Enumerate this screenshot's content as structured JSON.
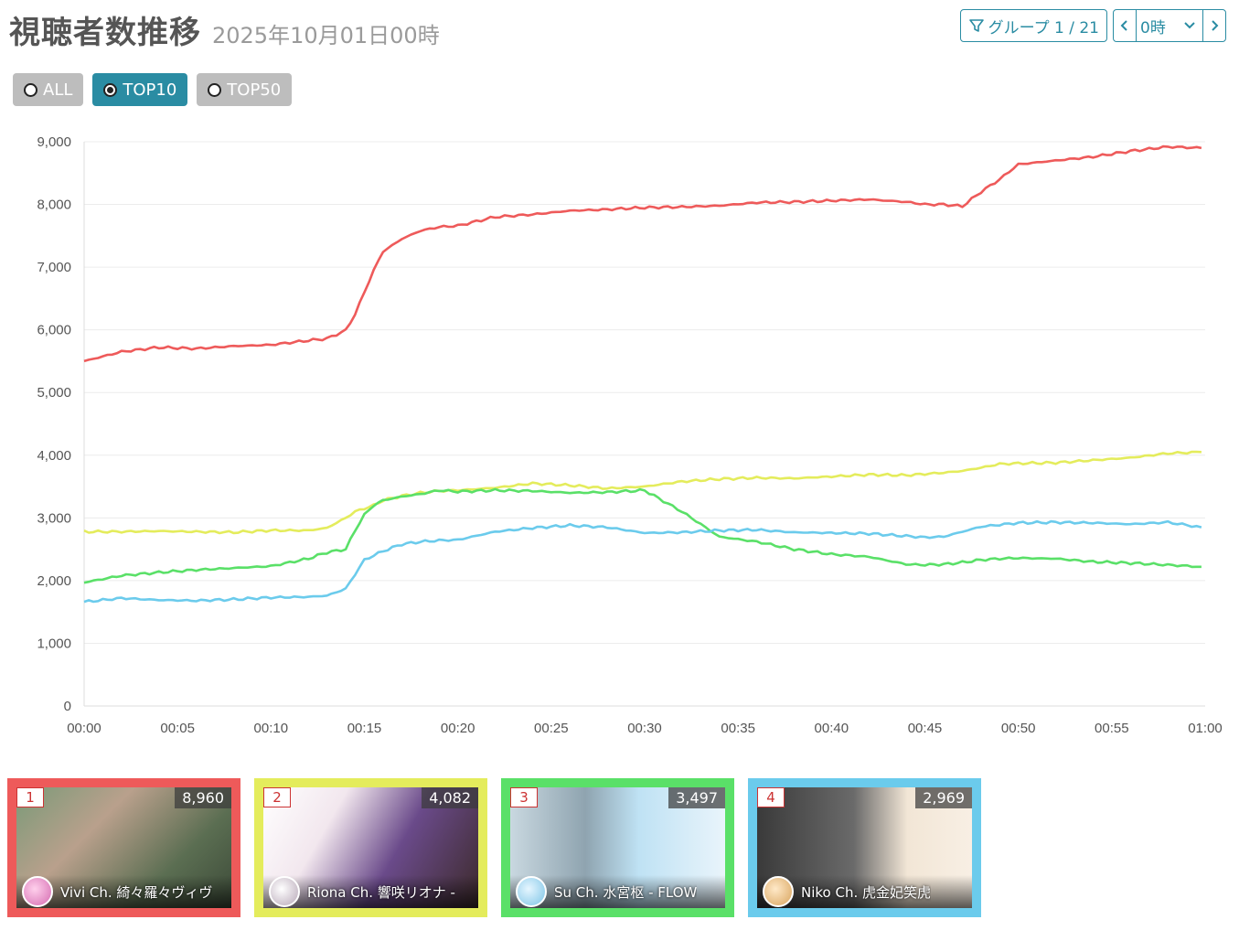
{
  "header": {
    "title": "視聴者数推移",
    "subtitle": "2025年10月01日00時"
  },
  "controls": {
    "group_label": "グループ 1 / 21",
    "hour_value": "0時",
    "prev_icon": "chevron-left-icon",
    "next_icon": "chevron-right-icon",
    "filter_icon": "filter-icon"
  },
  "filters": [
    {
      "label": "ALL",
      "selected": false
    },
    {
      "label": "TOP10",
      "selected": true
    },
    {
      "label": "TOP50",
      "selected": false
    }
  ],
  "cards": [
    {
      "rank": "1",
      "count": "8,960",
      "name": "Vivi Ch. 綺々羅々ヴィヴ",
      "color": "#ee5a5a"
    },
    {
      "rank": "2",
      "count": "4,082",
      "name": "Riona Ch. 響咲リオナ -",
      "color": "#e4ec5c"
    },
    {
      "rank": "3",
      "count": "3,497",
      "name": "Su Ch. 水宮枢 - FLOW",
      "color": "#5ae068"
    },
    {
      "rank": "4",
      "count": "2,969",
      "name": "Niko Ch. 虎金妃笑虎",
      "color": "#6bcbec"
    }
  ],
  "chart_data": {
    "type": "line",
    "title": "",
    "xlabel": "",
    "ylabel": "",
    "ylim": [
      0,
      9000
    ],
    "xlim_minutes": [
      0,
      60
    ],
    "y_ticks": [
      "0",
      "1,000",
      "2,000",
      "3,000",
      "4,000",
      "5,000",
      "6,000",
      "7,000",
      "8,000",
      "9,000"
    ],
    "x_ticks": [
      "00:00",
      "00:05",
      "00:10",
      "00:15",
      "00:20",
      "00:25",
      "00:30",
      "00:35",
      "00:40",
      "00:45",
      "00:50",
      "00:55",
      "01:00"
    ],
    "grid": true,
    "x_minutes": [
      0,
      2,
      4,
      6,
      8,
      10,
      12,
      13,
      14,
      14.5,
      15,
      15.5,
      16,
      17,
      18,
      19,
      20,
      22,
      24,
      26,
      28,
      30,
      32,
      34,
      36,
      38,
      40,
      42,
      44,
      45,
      46,
      47,
      48,
      49,
      50,
      52,
      54,
      56,
      58,
      59.8
    ],
    "series": [
      {
        "color": "#ee5a5a",
        "values": [
          5500,
          5650,
          5720,
          5700,
          5740,
          5760,
          5830,
          5860,
          5990,
          6250,
          6600,
          6950,
          7250,
          7450,
          7580,
          7640,
          7660,
          7800,
          7840,
          7900,
          7920,
          7950,
          7960,
          7980,
          8030,
          8040,
          8060,
          8080,
          8040,
          8000,
          8000,
          7970,
          8200,
          8400,
          8640,
          8700,
          8760,
          8850,
          8920,
          8900
        ]
      },
      {
        "color": "#e4ec5c",
        "values": [
          2780,
          2780,
          2790,
          2780,
          2770,
          2800,
          2800,
          2840,
          3000,
          3100,
          3150,
          3200,
          3280,
          3350,
          3400,
          3430,
          3440,
          3480,
          3550,
          3520,
          3470,
          3500,
          3580,
          3620,
          3640,
          3630,
          3660,
          3690,
          3680,
          3700,
          3720,
          3750,
          3800,
          3860,
          3870,
          3880,
          3920,
          3960,
          4030,
          4050
        ]
      },
      {
        "color": "#5ae068",
        "values": [
          1970,
          2080,
          2130,
          2170,
          2200,
          2230,
          2350,
          2450,
          2500,
          2800,
          3050,
          3200,
          3280,
          3340,
          3380,
          3440,
          3420,
          3440,
          3430,
          3400,
          3410,
          3440,
          3100,
          2700,
          2620,
          2500,
          2420,
          2380,
          2260,
          2250,
          2260,
          2290,
          2330,
          2350,
          2360,
          2350,
          2300,
          2280,
          2250,
          2220
        ]
      },
      {
        "color": "#6bcbec",
        "values": [
          1660,
          1720,
          1690,
          1680,
          1700,
          1730,
          1740,
          1760,
          1870,
          2100,
          2330,
          2400,
          2470,
          2580,
          2620,
          2640,
          2650,
          2780,
          2840,
          2880,
          2850,
          2760,
          2770,
          2800,
          2810,
          2770,
          2760,
          2750,
          2710,
          2690,
          2700,
          2780,
          2860,
          2890,
          2920,
          2930,
          2920,
          2900,
          2930,
          2850
        ]
      }
    ]
  }
}
